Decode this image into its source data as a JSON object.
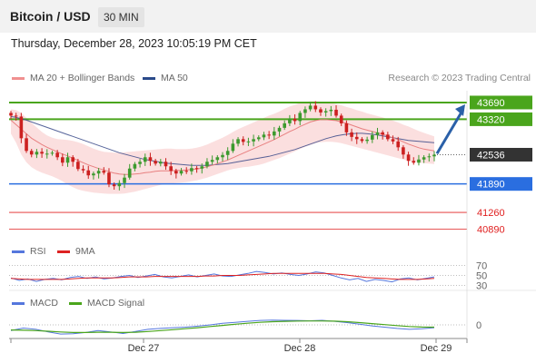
{
  "header": {
    "instrument": "Bitcoin / USD",
    "timeframe": "30 MIN"
  },
  "datetime": "Thursday, December 28, 2023 10:05:19 PM CET",
  "credit": "Research © 2023 Trading Central",
  "legend": {
    "ma20": "MA 20 + Bollinger Bands",
    "ma50": "MA 50",
    "rsi": "RSI",
    "rsi_ma": "9MA",
    "macd": "MACD",
    "macd_signal": "MACD Signal"
  },
  "colors": {
    "up": "#3c9a2e",
    "down": "#cc2020",
    "ma20": "#e88080",
    "ma50": "#3a4a8a",
    "bollinger": "#fbdcdc",
    "resistance": "#4aa51c",
    "support": "#2a6ee0",
    "target": "#e02020",
    "current": "#333333",
    "arrow": "#2a60a8",
    "rsi": "#5577dd",
    "rsi_ma": "#dd2222",
    "macd": "#5577dd",
    "macd_signal": "#4aa51c"
  },
  "chart_data": [
    {
      "type": "candlestick",
      "name": "price",
      "y_range": [
        40700,
        43950
      ],
      "x_ticks": [
        "Dec 27",
        "Dec 28",
        "Dec 29"
      ],
      "levels": [
        {
          "value": 43690,
          "label": "43690",
          "kind": "resistance"
        },
        {
          "value": 43320,
          "label": "43320",
          "kind": "resistance"
        },
        {
          "value": 42536,
          "label": "42536",
          "kind": "current"
        },
        {
          "value": 41890,
          "label": "41890",
          "kind": "support"
        },
        {
          "value": 41260,
          "label": "41260",
          "kind": "target"
        },
        {
          "value": 40890,
          "label": "40890",
          "kind": "target"
        }
      ],
      "close": [
        43400,
        43380,
        42900,
        42620,
        42540,
        42600,
        42560,
        42560,
        42580,
        42480,
        42360,
        42480,
        42380,
        42220,
        42190,
        42080,
        42120,
        42180,
        42140,
        41880,
        41840,
        41910,
        42030,
        42230,
        42330,
        42380,
        42480,
        42400,
        42340,
        42380,
        42280,
        42180,
        42120,
        42180,
        42170,
        42240,
        42230,
        42280,
        42380,
        42420,
        42480,
        42530,
        42620,
        42780,
        42880,
        42820,
        42830,
        42880,
        42920,
        42980,
        42960,
        43050,
        43130,
        43230,
        43330,
        43280,
        43460,
        43540,
        43620,
        43540,
        43470,
        43500,
        43530,
        43400,
        43230,
        43030,
        42930,
        42880,
        42840,
        42870,
        42970,
        43030,
        42980,
        42880,
        42830,
        42700,
        42540,
        42400,
        42360,
        42430,
        42480,
        42500,
        42536
      ],
      "bollinger_upper": [
        43540,
        43520,
        43460,
        43350,
        43240,
        43140,
        43040,
        42960,
        42910,
        42880,
        42870,
        42860,
        42840,
        42810,
        42770,
        42720,
        42670,
        42630,
        42600,
        42590,
        42580,
        42580,
        42590,
        42600,
        42610,
        42620,
        42630,
        42640,
        42650,
        42660,
        42670,
        42670,
        42660,
        42660,
        42660,
        42670,
        42690,
        42720,
        42760,
        42810,
        42860,
        42910,
        42970,
        43040,
        43100,
        43150,
        43200,
        43250,
        43300,
        43350,
        43400,
        43440,
        43490,
        43550,
        43600,
        43640,
        43680,
        43700,
        43720,
        43720,
        43710,
        43690,
        43680,
        43660,
        43630,
        43590,
        43560,
        43520,
        43490,
        43450,
        43420,
        43390,
        43360,
        43320,
        43290,
        43250,
        43200,
        43160,
        43110,
        43060,
        43020,
        42980,
        42940
      ],
      "bollinger_lower": [
        43000,
        42800,
        42540,
        42370,
        42260,
        42190,
        42140,
        42100,
        42060,
        42010,
        41950,
        41880,
        41820,
        41770,
        41740,
        41720,
        41700,
        41690,
        41680,
        41670,
        41670,
        41670,
        41680,
        41700,
        41720,
        41750,
        41780,
        41810,
        41840,
        41870,
        41890,
        41900,
        41910,
        41920,
        41930,
        41950,
        41970,
        42000,
        42030,
        42070,
        42110,
        42150,
        42190,
        42220,
        42240,
        42260,
        42270,
        42290,
        42310,
        42340,
        42380,
        42420,
        42460,
        42510,
        42560,
        42610,
        42660,
        42710,
        42750,
        42790,
        42810,
        42820,
        42820,
        42810,
        42790,
        42760,
        42730,
        42700,
        42670,
        42640,
        42610,
        42580,
        42550,
        42520,
        42490,
        42460,
        42430,
        42400,
        42380,
        42360,
        42350,
        42340,
        42330
      ],
      "ma20": [
        43300,
        43200,
        43100,
        43000,
        42900,
        42830,
        42760,
        42700,
        42650,
        42600,
        42550,
        42510,
        42460,
        42410,
        42360,
        42310,
        42270,
        42230,
        42200,
        42160,
        42130,
        42110,
        42100,
        42100,
        42110,
        42120,
        42140,
        42150,
        42170,
        42180,
        42180,
        42180,
        42190,
        42190,
        42200,
        42210,
        42220,
        42240,
        42270,
        42300,
        42340,
        42380,
        42420,
        42470,
        42520,
        42570,
        42620,
        42670,
        42720,
        42770,
        42820,
        42870,
        42930,
        42990,
        43050,
        43100,
        43160,
        43210,
        43260,
        43290,
        43310,
        43310,
        43300,
        43290,
        43260,
        43230,
        43190,
        43150,
        43110,
        43080,
        43050,
        43020,
        42990,
        42950,
        42910,
        42870,
        42820,
        42770,
        42730,
        42690,
        42660,
        42640,
        42620
      ],
      "ma50": [
        43380,
        43360,
        43330,
        43300,
        43260,
        43220,
        43180,
        43140,
        43100,
        43060,
        43020,
        42980,
        42940,
        42900,
        42860,
        42820,
        42780,
        42740,
        42700,
        42660,
        42620,
        42580,
        42550,
        42520,
        42490,
        42460,
        42430,
        42410,
        42390,
        42370,
        42350,
        42340,
        42330,
        42320,
        42310,
        42300,
        42300,
        42300,
        42300,
        42310,
        42320,
        42330,
        42340,
        42360,
        42380,
        42400,
        42420,
        42440,
        42460,
        42480,
        42500,
        42530,
        42560,
        42590,
        42620,
        42650,
        42690,
        42730,
        42770,
        42810,
        42850,
        42890,
        42920,
        42950,
        42970,
        42990,
        43000,
        43010,
        43010,
        43000,
        42990,
        42970,
        42950,
        42930,
        42910,
        42890,
        42870,
        42850,
        42840,
        42830,
        42820,
        42810,
        42800
      ],
      "forecast_arrow": {
        "from": 42560,
        "to": 43690
      }
    },
    {
      "type": "line",
      "name": "RSI",
      "y_range": [
        20,
        80
      ],
      "reference_levels": [
        70,
        50,
        30
      ],
      "series": [
        {
          "name": "RSI",
          "values": [
            45,
            40,
            43,
            38,
            42,
            44,
            41,
            46,
            48,
            44,
            47,
            43,
            45,
            48,
            50,
            46,
            49,
            52,
            47,
            45,
            48,
            51,
            47,
            50,
            53,
            49,
            48,
            51,
            54,
            58,
            56,
            53,
            55,
            52,
            50,
            53,
            57,
            55,
            50,
            45,
            41,
            44,
            38,
            42,
            40,
            37,
            43,
            45,
            41,
            44,
            47
          ]
        },
        {
          "name": "9MA",
          "values": [
            44,
            43,
            42,
            42,
            42,
            42,
            42,
            43,
            44,
            45,
            45,
            45,
            45,
            46,
            47,
            47,
            47,
            48,
            48,
            48,
            48,
            48,
            48,
            49,
            49,
            50,
            50,
            50,
            51,
            52,
            53,
            54,
            54,
            54,
            54,
            54,
            54,
            54,
            53,
            52,
            50,
            48,
            46,
            45,
            44,
            43,
            42,
            42,
            42,
            43,
            44
          ]
        }
      ]
    },
    {
      "type": "line",
      "name": "MACD",
      "y_range": [
        -1,
        1
      ],
      "reference_levels": [
        0
      ],
      "tick_labels": [
        "0"
      ],
      "series": [
        {
          "name": "MACD",
          "values": [
            -0.45,
            -0.25,
            -0.35,
            -0.55,
            -0.72,
            -0.7,
            -0.6,
            -0.45,
            -0.55,
            -0.68,
            -0.52,
            -0.35,
            -0.28,
            -0.22,
            -0.18,
            -0.1,
            0.0,
            0.12,
            0.2,
            0.28,
            0.35,
            0.37,
            0.36,
            0.35,
            0.32,
            0.36,
            0.28,
            0.18,
            0.05,
            -0.08,
            -0.18,
            -0.28,
            -0.35,
            -0.3,
            -0.22
          ]
        },
        {
          "name": "MACD Signal",
          "values": [
            -0.4,
            -0.42,
            -0.45,
            -0.5,
            -0.56,
            -0.6,
            -0.6,
            -0.58,
            -0.58,
            -0.6,
            -0.58,
            -0.52,
            -0.45,
            -0.38,
            -0.3,
            -0.22,
            -0.13,
            -0.04,
            0.05,
            0.13,
            0.2,
            0.25,
            0.28,
            0.3,
            0.31,
            0.31,
            0.29,
            0.25,
            0.18,
            0.1,
            0.02,
            -0.06,
            -0.13,
            -0.17,
            -0.18
          ]
        }
      ]
    }
  ]
}
